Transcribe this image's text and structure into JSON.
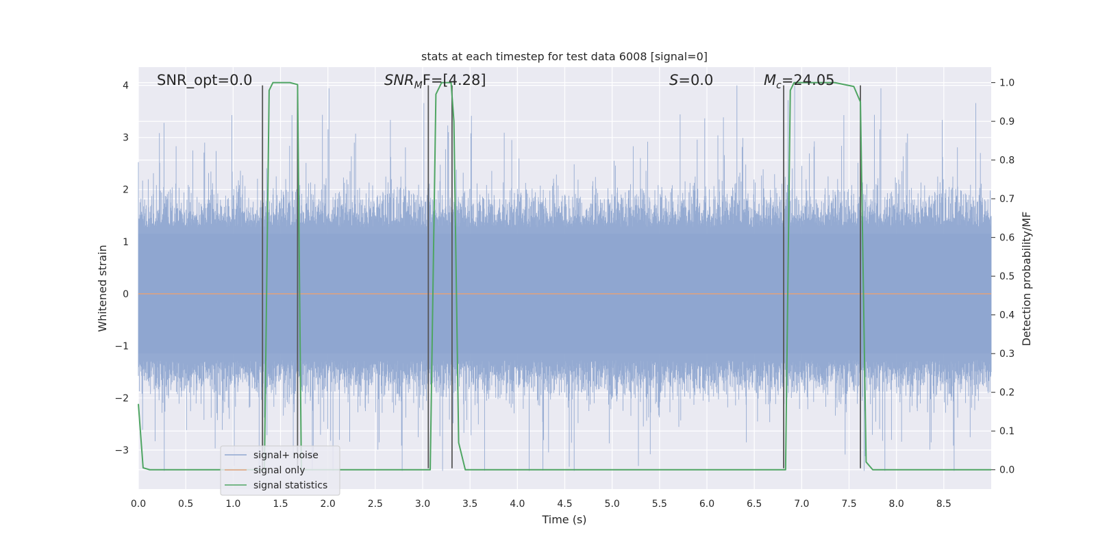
{
  "chart_data": {
    "type": "line",
    "title": "stats at each timestep for test data 6008 [signal=0]",
    "xlabel": "Time (s)",
    "ylabel_left": "Whitened strain",
    "ylabel_right": "Detection probability/MF",
    "xlim": [
      0.0,
      9.0
    ],
    "ylim_left": [
      -3.75,
      4.35
    ],
    "ylim_right": [
      -0.05,
      1.04
    ],
    "xticks": [
      "0.0",
      "0.5",
      "1.0",
      "1.5",
      "2.0",
      "2.5",
      "3.0",
      "3.5",
      "4.0",
      "4.5",
      "5.0",
      "5.5",
      "6.0",
      "6.5",
      "7.0",
      "7.5",
      "8.0",
      "8.5"
    ],
    "yticks_left": [
      "−3",
      "−2",
      "−1",
      "0",
      "1",
      "2",
      "3",
      "4"
    ],
    "yticks_right": [
      "0.0",
      "0.1",
      "0.2",
      "0.3",
      "0.4",
      "0.5",
      "0.6",
      "0.7",
      "0.8",
      "0.9",
      "1.0"
    ],
    "grid": true,
    "legend_position": "lower-left",
    "annotations": {
      "snr_opt": "SNR_opt=0.0",
      "snr_mf_prefix": "SNR",
      "snr_mf_sub": "M",
      "snr_mf_suffix": "F=[4.28]",
      "s_italic": "S",
      "s_rest": "=0.0",
      "mc_italic": "M",
      "mc_sub": "c",
      "mc_rest": "=24.05"
    },
    "series": [
      {
        "name": "signal+ noise",
        "color": "#8fa6d0",
        "axis": "left",
        "noise_envelope": {
          "typical_abs": 1.7,
          "peak_max": 4.0,
          "peak_min": -3.4
        }
      },
      {
        "name": "signal only",
        "color": "#e1a17c",
        "axis": "left",
        "x": [
          0.0,
          9.0
        ],
        "y": [
          0.0,
          0.0
        ]
      },
      {
        "name": "signal statistics",
        "color": "#4ea562",
        "axis": "right",
        "x": [
          0.0,
          0.05,
          0.12,
          1.3,
          1.33,
          1.38,
          1.42,
          1.6,
          1.68,
          1.72,
          3.05,
          3.08,
          3.14,
          3.2,
          3.3,
          3.33,
          3.38,
          3.45,
          6.8,
          6.83,
          6.88,
          6.92,
          7.35,
          7.55,
          7.62,
          7.68,
          7.75,
          9.0
        ],
        "y": [
          0.17,
          0.005,
          0.0,
          0.0,
          0.0,
          0.98,
          1.0,
          1.0,
          0.995,
          0.0,
          0.0,
          0.0,
          0.97,
          1.0,
          1.0,
          0.9,
          0.07,
          0.0,
          0.0,
          0.0,
          0.98,
          1.0,
          1.0,
          0.99,
          0.95,
          0.02,
          0.0,
          0.0
        ]
      }
    ],
    "vertical_lines": [
      1.31,
      1.68,
      3.06,
      3.31,
      6.81,
      7.62
    ]
  }
}
